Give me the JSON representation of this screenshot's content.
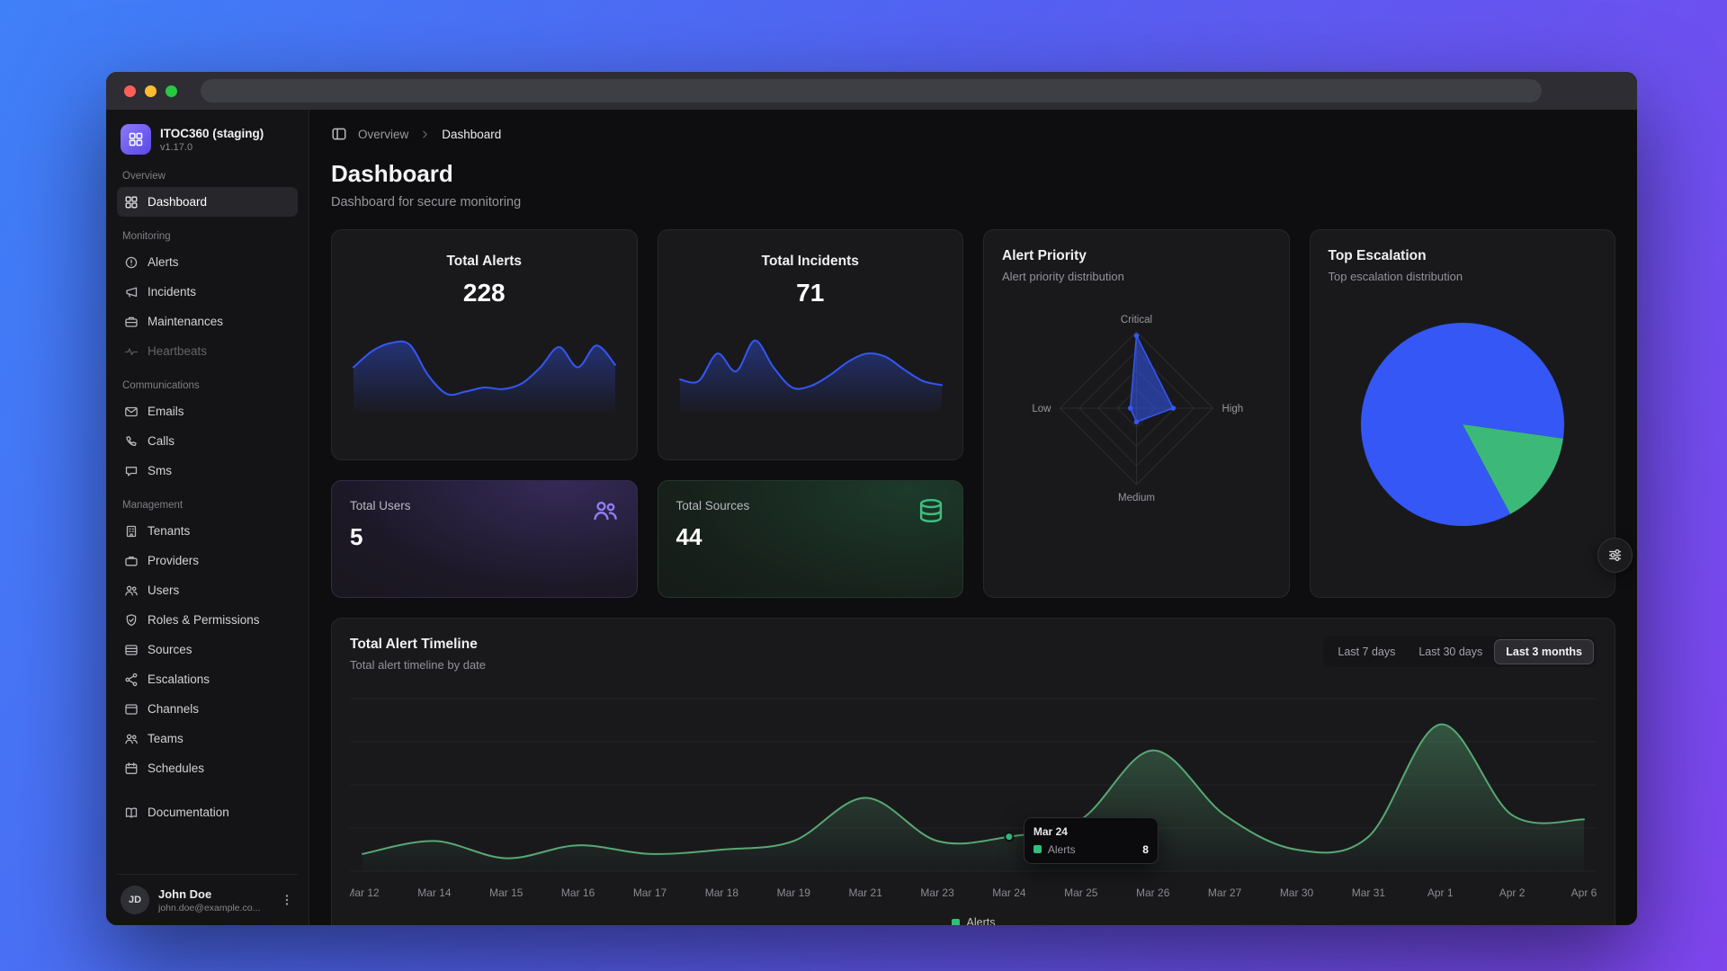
{
  "window": {
    "url_bar_text": ""
  },
  "sidebar": {
    "app_name": "ITOC360 (staging)",
    "version": "v1.17.0",
    "sections": [
      {
        "label": "Overview",
        "items": [
          {
            "label": "Dashboard",
            "icon": "dashboard-icon",
            "active": true
          }
        ]
      },
      {
        "label": "Monitoring",
        "items": [
          {
            "label": "Alerts",
            "icon": "alert-icon"
          },
          {
            "label": "Incidents",
            "icon": "incident-icon"
          },
          {
            "label": "Maintenances",
            "icon": "maintenance-icon"
          },
          {
            "label": "Heartbeats",
            "icon": "heartbeat-icon",
            "disabled": true
          }
        ]
      },
      {
        "label": "Communications",
        "items": [
          {
            "label": "Emails",
            "icon": "email-icon"
          },
          {
            "label": "Calls",
            "icon": "phone-icon"
          },
          {
            "label": "Sms",
            "icon": "chat-icon"
          }
        ]
      },
      {
        "label": "Management",
        "items": [
          {
            "label": "Tenants",
            "icon": "building-icon"
          },
          {
            "label": "Providers",
            "icon": "briefcase-icon"
          },
          {
            "label": "Users",
            "icon": "users-icon"
          },
          {
            "label": "Roles & Permissions",
            "icon": "shield-icon"
          },
          {
            "label": "Sources",
            "icon": "rows-icon"
          },
          {
            "label": "Escalations",
            "icon": "branch-icon"
          },
          {
            "label": "Channels",
            "icon": "window-icon"
          },
          {
            "label": "Teams",
            "icon": "users-icon"
          },
          {
            "label": "Schedules",
            "icon": "calendar-icon"
          }
        ]
      }
    ],
    "documentation_label": "Documentation",
    "user": {
      "initials": "JD",
      "name": "John Doe",
      "email": "john.doe@example.co..."
    }
  },
  "breadcrumb": {
    "parent": "Overview",
    "current": "Dashboard"
  },
  "page": {
    "title": "Dashboard",
    "subtitle": "Dashboard for secure monitoring"
  },
  "cards": {
    "total_alerts": {
      "title": "Total Alerts",
      "value": "228"
    },
    "total_incidents": {
      "title": "Total Incidents",
      "value": "71"
    },
    "alert_priority": {
      "title": "Alert Priority",
      "subtitle": "Alert priority distribution"
    },
    "top_escalation": {
      "title": "Top Escalation",
      "subtitle": "Top escalation distribution"
    },
    "total_users": {
      "title": "Total Users",
      "value": "5"
    },
    "total_sources": {
      "title": "Total Sources",
      "value": "44"
    }
  },
  "timeline": {
    "title": "Total Alert Timeline",
    "subtitle": "Total alert timeline by date",
    "ranges": [
      {
        "label": "Last 7 days",
        "active": false
      },
      {
        "label": "Last 30 days",
        "active": false
      },
      {
        "label": "Last 3 months",
        "active": true
      }
    ],
    "legend": "Alerts",
    "tooltip": {
      "date": "Mar 24",
      "series": "Alerts",
      "value": "8"
    }
  },
  "colors": {
    "accent_blue": "#3457f5",
    "accent_green": "#2fbf7d",
    "accent_purple": "#8a7bf7",
    "timeline_line": "#58a873",
    "traffic_lights": [
      "#ff5f57",
      "#febc2e",
      "#28c840"
    ]
  },
  "chart_data": [
    {
      "id": "total_alerts_spark",
      "type": "area",
      "title": "Total Alerts trend",
      "series": [
        {
          "name": "Alerts",
          "values": [
            55,
            75,
            85,
            83,
            45,
            22,
            25,
            30,
            28,
            35,
            55,
            80,
            55,
            82,
            58
          ]
        }
      ],
      "ylim": [
        0,
        100
      ],
      "color": "#3457f5",
      "grid": false
    },
    {
      "id": "total_incidents_spark",
      "type": "area",
      "title": "Total Incidents trend",
      "series": [
        {
          "name": "Incidents",
          "values": [
            40,
            38,
            72,
            50,
            88,
            55,
            30,
            32,
            45,
            62,
            72,
            68,
            52,
            38,
            33
          ]
        }
      ],
      "ylim": [
        0,
        100
      ],
      "color": "#3457f5",
      "grid": false
    },
    {
      "id": "alert_priority_radar",
      "type": "radar",
      "title": "Alert Priority",
      "axes": [
        "Critical",
        "High",
        "Medium",
        "Low"
      ],
      "values": [
        95,
        48,
        18,
        8
      ],
      "max": 100,
      "color": "#3457f5"
    },
    {
      "id": "top_escalation_pie",
      "type": "pie",
      "title": "Top Escalation",
      "segments": [
        {
          "value": 85,
          "color": "#3457f5"
        },
        {
          "value": 15,
          "color": "#3cb979"
        }
      ],
      "start_angle_deg": 62
    },
    {
      "id": "alert_timeline",
      "type": "area",
      "title": "Total Alert Timeline",
      "categories": [
        "Mar 12",
        "Mar 14",
        "Mar 15",
        "Mar 16",
        "Mar 17",
        "Mar 18",
        "Mar 19",
        "Mar 21",
        "Mar 23",
        "Mar 24",
        "Mar 25",
        "Mar 26",
        "Mar 27",
        "Mar 30",
        "Mar 31",
        "Apr 1",
        "Apr 2",
        "Apr 6"
      ],
      "series": [
        {
          "name": "Alerts",
          "values": [
            4,
            7,
            3,
            6,
            4,
            5,
            7,
            17,
            7,
            8,
            12,
            28,
            13,
            5,
            8,
            34,
            13,
            12
          ]
        }
      ],
      "ylim": [
        0,
        40
      ],
      "color": "#58a873",
      "grid": true,
      "legend": [
        "Alerts"
      ],
      "legend_position": "bottom",
      "tooltip": {
        "index": 9,
        "label": "Mar 24",
        "value": 8
      }
    }
  ]
}
